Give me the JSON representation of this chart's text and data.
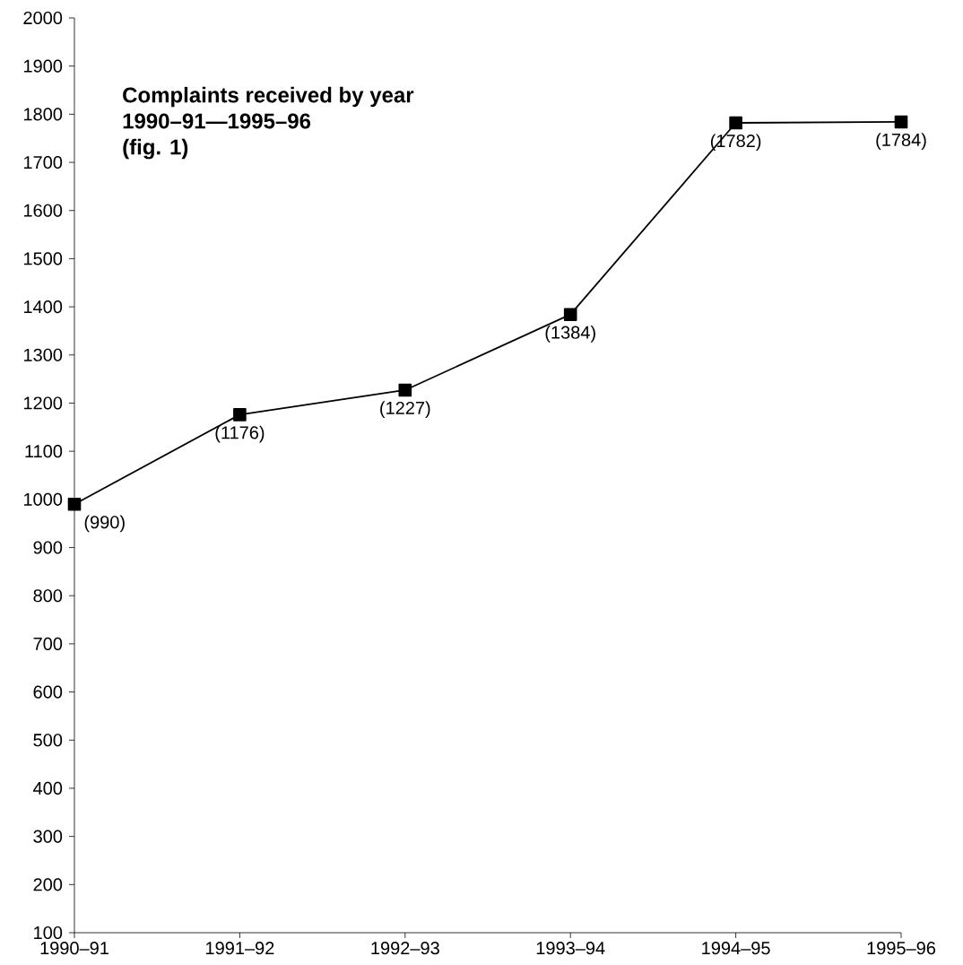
{
  "chart_data": {
    "type": "line",
    "title": "Complaints received by year",
    "subtitle": "1990–91—1995–96",
    "annotations": [
      "(fig. 1)"
    ],
    "categories": [
      "1990–91",
      "1991–92",
      "1992–93",
      "1993–94",
      "1994–95",
      "1995–96"
    ],
    "values": [
      990,
      1176,
      1227,
      1384,
      1782,
      1784
    ],
    "value_labels": [
      "(990)",
      "(1176)",
      "(1227)",
      "(1384)",
      "(1782)",
      "(1784)"
    ],
    "color": "#000000",
    "marker": "square",
    "line_style": "solid",
    "ylim": [
      100,
      2000
    ],
    "yticks": [
      100,
      200,
      300,
      400,
      500,
      600,
      700,
      800,
      900,
      1000,
      1100,
      1200,
      1300,
      1400,
      1500,
      1600,
      1700,
      1800,
      1900,
      2000
    ],
    "grid": false
  }
}
